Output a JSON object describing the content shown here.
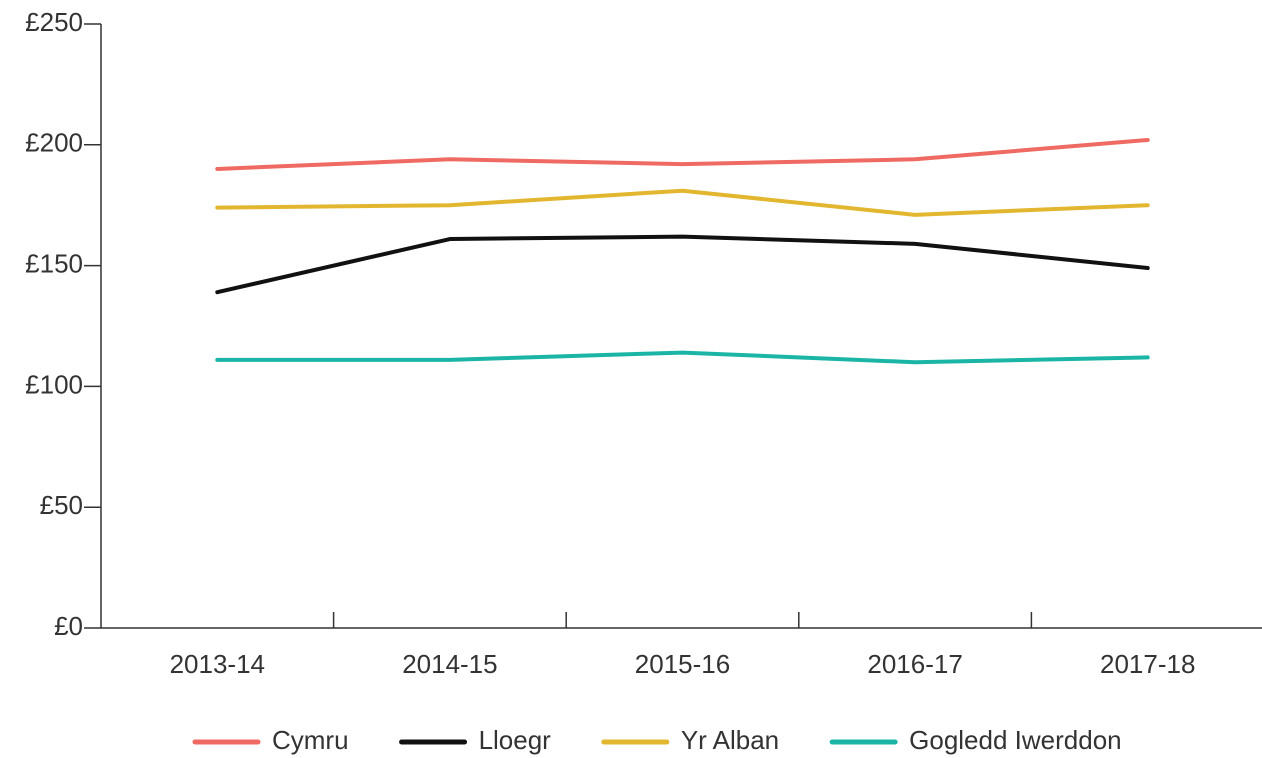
{
  "chart_data": {
    "type": "line",
    "categories": [
      "2013-14",
      "2014-15",
      "2015-16",
      "2016-17",
      "2017-18"
    ],
    "series": [
      {
        "name": "Cymru",
        "color": "#ef6a62",
        "values": [
          190,
          194,
          192,
          194,
          202
        ]
      },
      {
        "name": "Lloegr",
        "color": "#111111",
        "values": [
          139,
          161,
          162,
          159,
          149
        ]
      },
      {
        "name": "Yr Alban",
        "color": "#e2b72f",
        "values": [
          174,
          175,
          181,
          171,
          175
        ]
      },
      {
        "name": "Gogledd Iwerddon",
        "color": "#1ab5a5",
        "values": [
          111,
          111,
          114,
          110,
          112
        ]
      }
    ],
    "ylim": [
      0,
      250
    ],
    "yticks": [
      {
        "value": 0,
        "label": "£0"
      },
      {
        "value": 50,
        "label": "£50"
      },
      {
        "value": 100,
        "label": "£100"
      },
      {
        "value": 150,
        "label": "£150"
      },
      {
        "value": 200,
        "label": "£200"
      },
      {
        "value": 250,
        "label": "£250"
      }
    ],
    "grid": false,
    "legend": "bottom"
  }
}
